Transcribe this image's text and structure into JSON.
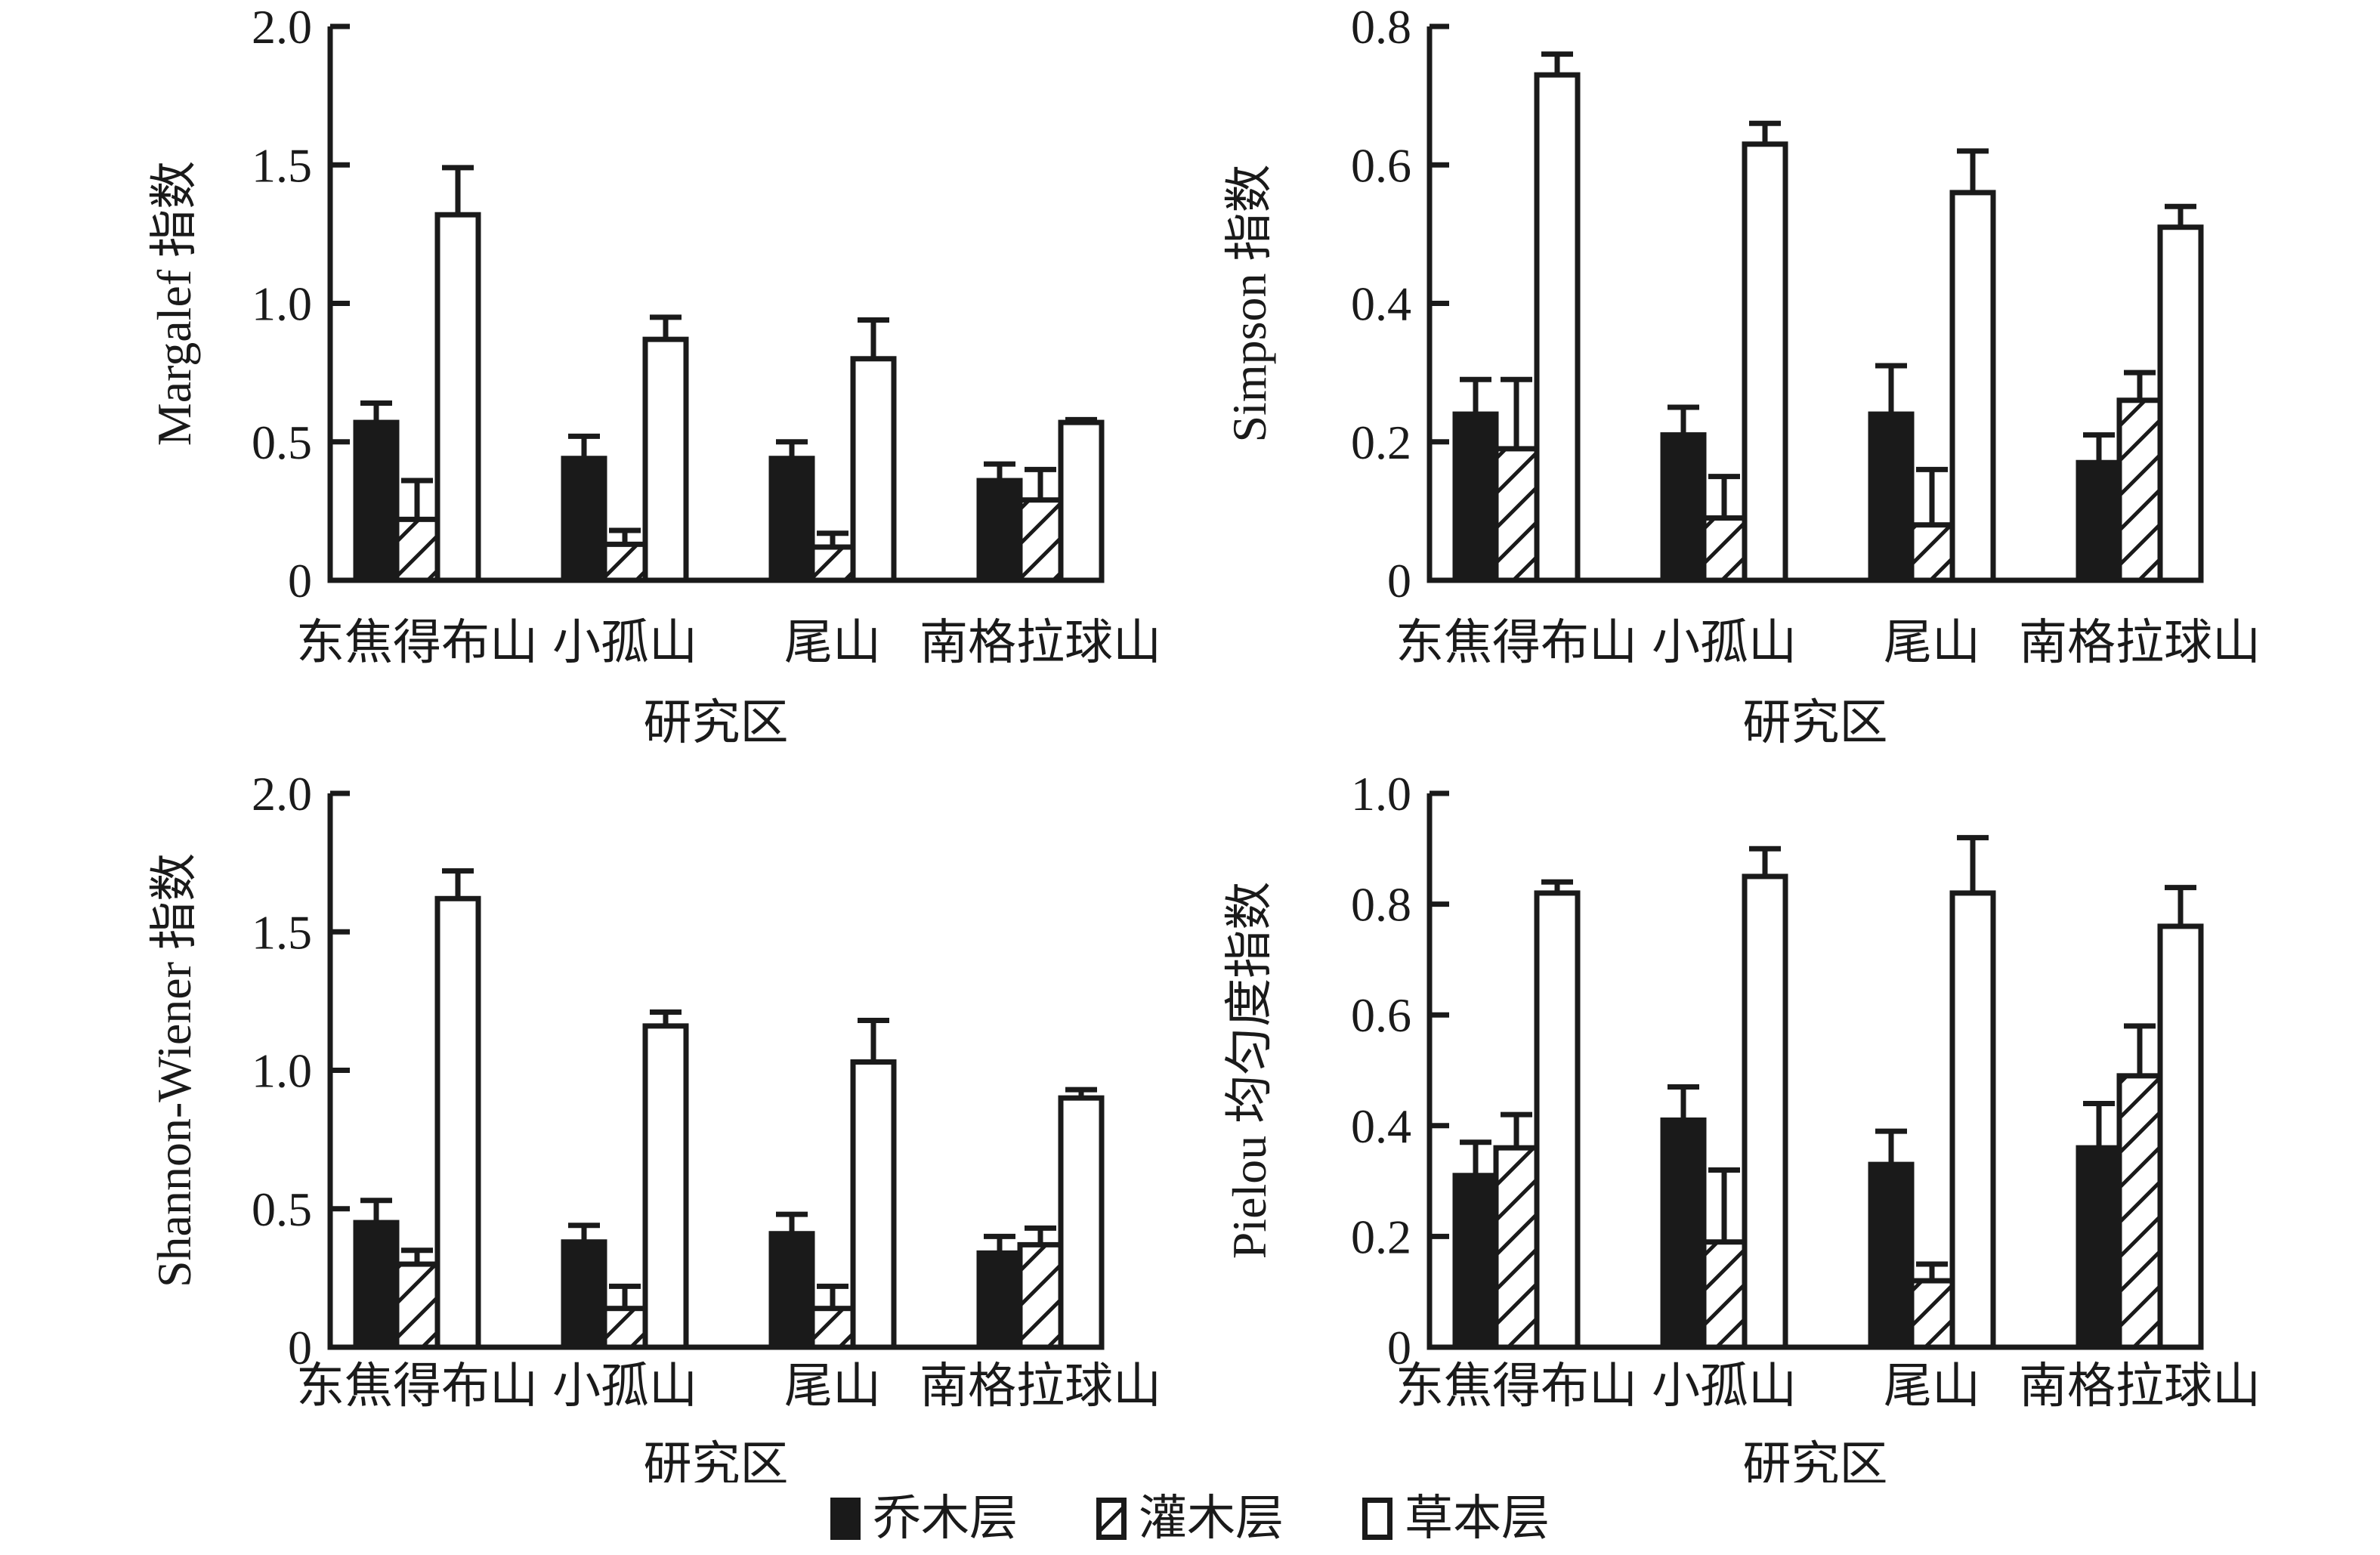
{
  "figure": {
    "x_axis_label": "研究区",
    "categories": [
      "东焦得布山",
      "小孤山",
      "尾山",
      "南格拉球山"
    ],
    "series_names": [
      "乔木层",
      "灌木层",
      "草本层"
    ],
    "colors": {
      "ink": "#1a1a1a",
      "background": "#ffffff",
      "solid_bar_fill": "#1a1a1a",
      "open_bar_fill": "#ffffff"
    }
  },
  "legend": {
    "items": [
      {
        "label": "乔木层",
        "style": "solid"
      },
      {
        "label": "灌木层",
        "style": "hatched"
      },
      {
        "label": "草本层",
        "style": "open"
      }
    ]
  },
  "chart_data": [
    {
      "type": "bar",
      "title": "Margalef 指数",
      "ylabel": "Margalef 指数",
      "xlabel": "研究区",
      "ylim": [
        0,
        2.0
      ],
      "yticks": [
        0,
        0.5,
        1.0,
        1.5,
        2.0
      ],
      "ytick_labels": [
        "0",
        "0.5",
        "1.0",
        "1.5",
        "2.0"
      ],
      "grid": false,
      "legend_position": "none",
      "categories": [
        "东焦得布山",
        "小孤山",
        "尾山",
        "南格拉球山"
      ],
      "series": [
        {
          "name": "乔木层",
          "pattern": "solid",
          "values": [
            0.57,
            0.44,
            0.44,
            0.36
          ],
          "errors": [
            0.07,
            0.08,
            0.06,
            0.06
          ]
        },
        {
          "name": "灌木层",
          "pattern": "hatched",
          "values": [
            0.22,
            0.13,
            0.12,
            0.29
          ],
          "errors": [
            0.14,
            0.05,
            0.05,
            0.11
          ]
        },
        {
          "name": "草本层",
          "pattern": "open",
          "values": [
            1.32,
            0.87,
            0.8,
            0.57
          ],
          "errors": [
            0.17,
            0.08,
            0.14,
            0.01
          ]
        }
      ]
    },
    {
      "type": "bar",
      "title": "Simpson 指数",
      "ylabel": "Simpson 指数",
      "xlabel": "研究区",
      "ylim": [
        0,
        0.8
      ],
      "yticks": [
        0,
        0.2,
        0.4,
        0.6,
        0.8
      ],
      "ytick_labels": [
        "0",
        "0.2",
        "0.4",
        "0.6",
        "0.8"
      ],
      "grid": false,
      "legend_position": "none",
      "categories": [
        "东焦得布山",
        "小孤山",
        "尾山",
        "南格拉球山"
      ],
      "series": [
        {
          "name": "乔木层",
          "pattern": "solid",
          "values": [
            0.24,
            0.21,
            0.24,
            0.17
          ],
          "errors": [
            0.05,
            0.04,
            0.07,
            0.04
          ]
        },
        {
          "name": "灌木层",
          "pattern": "hatched",
          "values": [
            0.19,
            0.09,
            0.08,
            0.26
          ],
          "errors": [
            0.1,
            0.06,
            0.08,
            0.04
          ]
        },
        {
          "name": "草本层",
          "pattern": "open",
          "values": [
            0.73,
            0.63,
            0.56,
            0.51
          ],
          "errors": [
            0.03,
            0.03,
            0.06,
            0.03
          ]
        }
      ]
    },
    {
      "type": "bar",
      "title": "Shannon-Wiener 指数",
      "ylabel": "Shannon-Wiener 指数",
      "xlabel": "研究区",
      "ylim": [
        0,
        2.0
      ],
      "yticks": [
        0,
        0.5,
        1.0,
        1.5,
        2.0
      ],
      "ytick_labels": [
        "0",
        "0.5",
        "1.0",
        "1.5",
        "2.0"
      ],
      "grid": false,
      "legend_position": "none",
      "categories": [
        "东焦得布山",
        "小孤山",
        "尾山",
        "南格拉球山"
      ],
      "series": [
        {
          "name": "乔木层",
          "pattern": "solid",
          "values": [
            0.45,
            0.38,
            0.41,
            0.34
          ],
          "errors": [
            0.08,
            0.06,
            0.07,
            0.06
          ]
        },
        {
          "name": "灌木层",
          "pattern": "hatched",
          "values": [
            0.3,
            0.14,
            0.14,
            0.37
          ],
          "errors": [
            0.05,
            0.08,
            0.08,
            0.06
          ]
        },
        {
          "name": "草本层",
          "pattern": "open",
          "values": [
            1.62,
            1.16,
            1.03,
            0.9
          ],
          "errors": [
            0.1,
            0.05,
            0.15,
            0.03
          ]
        }
      ]
    },
    {
      "type": "bar",
      "title": "Pielou 均匀度指数",
      "ylabel": "Pielou 均匀度指数",
      "xlabel": "研究区",
      "ylim": [
        0,
        1.0
      ],
      "yticks": [
        0,
        0.2,
        0.4,
        0.6,
        0.8,
        1.0
      ],
      "ytick_labels": [
        "0",
        "0.2",
        "0.4",
        "0.6",
        "0.8",
        "1.0"
      ],
      "grid": false,
      "legend_position": "none",
      "categories": [
        "东焦得布山",
        "小孤山",
        "尾山",
        "南格拉球山"
      ],
      "series": [
        {
          "name": "乔木层",
          "pattern": "solid",
          "values": [
            0.31,
            0.41,
            0.33,
            0.36
          ],
          "errors": [
            0.06,
            0.06,
            0.06,
            0.08
          ]
        },
        {
          "name": "灌木层",
          "pattern": "hatched",
          "values": [
            0.36,
            0.19,
            0.12,
            0.49
          ],
          "errors": [
            0.06,
            0.13,
            0.03,
            0.09
          ]
        },
        {
          "name": "草本层",
          "pattern": "open",
          "values": [
            0.82,
            0.85,
            0.82,
            0.76
          ],
          "errors": [
            0.02,
            0.05,
            0.1,
            0.07
          ]
        }
      ]
    }
  ]
}
